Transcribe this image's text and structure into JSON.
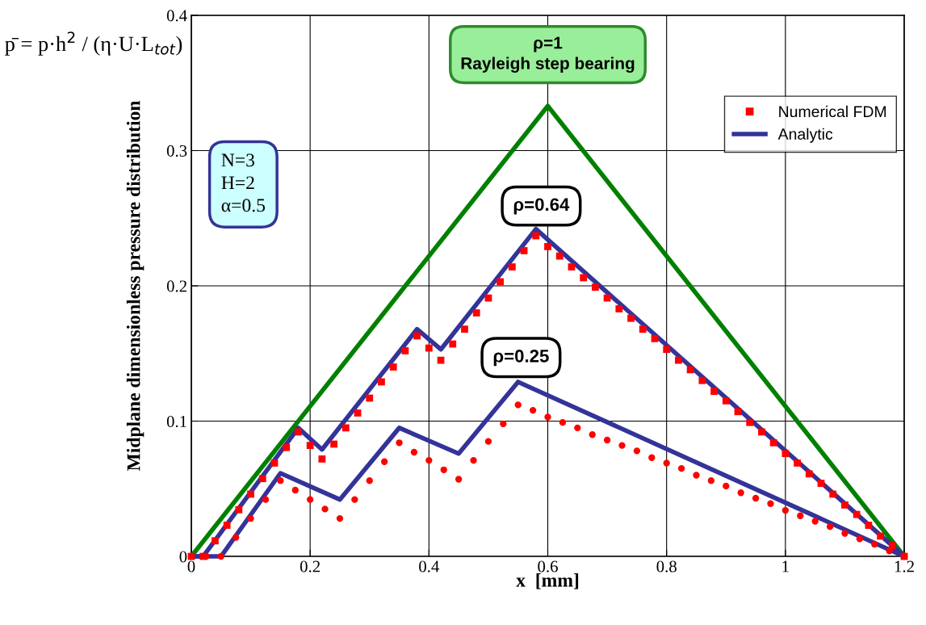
{
  "chart_data": {
    "type": "line",
    "xlabel": "x  [mm]",
    "ylabel": "Midplane dimensionless pressure distribution",
    "xlim": [
      0,
      1.2
    ],
    "xticks": [
      0,
      0.2,
      0.4,
      0.6,
      0.8,
      1,
      1.2
    ],
    "ylim": [
      0,
      0.4
    ],
    "yticks": [
      0,
      0.1,
      0.2,
      0.3,
      0.4
    ],
    "grid": true,
    "legend": "top right",
    "series": [
      {
        "color": "#008000",
        "x": [
          0,
          0.6,
          1.2
        ],
        "values": [
          0,
          0.333,
          0
        ]
      },
      {
        "type": "scatter",
        "name": "Numerical FDM",
        "color": "#ff0000",
        "marker": "square",
        "x": [
          0,
          0.02,
          0.04,
          0.06,
          0.08,
          0.1,
          0.12,
          0.14,
          0.16,
          0.18,
          0.2,
          0.22,
          0.24,
          0.26,
          0.28,
          0.3,
          0.32,
          0.34,
          0.36,
          0.38,
          0.4,
          0.42,
          0.44,
          0.46,
          0.48,
          0.5,
          0.52,
          0.54,
          0.56,
          0.58,
          0.6,
          0.62,
          0.64,
          0.66,
          0.68,
          0.7,
          0.72,
          0.74,
          0.76,
          0.78,
          0.8,
          0.82,
          0.84,
          0.86,
          0.88,
          0.9,
          0.92,
          0.94,
          0.96,
          0.98,
          1.0,
          1.02,
          1.04,
          1.06,
          1.08,
          1.1,
          1.12,
          1.14,
          1.16,
          1.18,
          1.2
        ],
        "values": [
          0,
          0,
          0.0115,
          0.023,
          0.0345,
          0.046,
          0.0575,
          0.069,
          0.0805,
          0.092,
          0.082,
          0.072,
          0.083,
          0.095,
          0.106,
          0.117,
          0.129,
          0.14,
          0.152,
          0.163,
          0.154,
          0.145,
          0.157,
          0.168,
          0.18,
          0.191,
          0.203,
          0.214,
          0.226,
          0.237,
          0.229,
          0.222,
          0.214,
          0.206,
          0.199,
          0.191,
          0.183,
          0.176,
          0.168,
          0.161,
          0.153,
          0.145,
          0.138,
          0.13,
          0.122,
          0.115,
          0.107,
          0.099,
          0.092,
          0.084,
          0.076,
          0.069,
          0.061,
          0.054,
          0.046,
          0.038,
          0.031,
          0.023,
          0.015,
          0.008,
          0
        ]
      },
      {
        "name": "Analytic",
        "color": "#333399",
        "x": [
          0,
          0.02,
          0.18,
          0.22,
          0.38,
          0.42,
          0.58,
          1.2
        ],
        "values": [
          0,
          0,
          0.095,
          0.079,
          0.168,
          0.153,
          0.242,
          0
        ]
      },
      {
        "color": "#333399",
        "x": [
          0,
          0.05,
          0.15,
          0.25,
          0.35,
          0.45,
          0.55,
          1.2
        ],
        "values": [
          0,
          0,
          0.0615,
          0.042,
          0.095,
          0.076,
          0.129,
          0
        ]
      },
      {
        "type": "scatter",
        "color": "#ff0000",
        "marker": "circle",
        "x": [
          0,
          0.025,
          0.05,
          0.075,
          0.1,
          0.125,
          0.15,
          0.175,
          0.2,
          0.225,
          0.25,
          0.275,
          0.3,
          0.325,
          0.35,
          0.375,
          0.4,
          0.425,
          0.45,
          0.475,
          0.5,
          0.525,
          0.55,
          0.575,
          0.6,
          0.625,
          0.65,
          0.675,
          0.7,
          0.725,
          0.75,
          0.775,
          0.8,
          0.825,
          0.85,
          0.875,
          0.9,
          0.925,
          0.95,
          0.975,
          1.0,
          1.025,
          1.05,
          1.075,
          1.1,
          1.125,
          1.15,
          1.175,
          1.2
        ],
        "values": [
          0,
          0,
          0,
          0.014,
          0.028,
          0.042,
          0.056,
          0.049,
          0.042,
          0.035,
          0.028,
          0.042,
          0.056,
          0.07,
          0.084,
          0.077,
          0.071,
          0.064,
          0.057,
          0.071,
          0.085,
          0.098,
          0.112,
          0.108,
          0.103,
          0.099,
          0.095,
          0.09,
          0.086,
          0.082,
          0.078,
          0.073,
          0.069,
          0.065,
          0.06,
          0.056,
          0.052,
          0.047,
          0.043,
          0.039,
          0.034,
          0.03,
          0.026,
          0.022,
          0.017,
          0.013,
          0.009,
          0.004,
          0
        ]
      }
    ],
    "annotations": [
      "ρ=1\nRayleigh step bearing",
      "ρ=0.64",
      "ρ=0.25",
      "N=3\nH=2\nα=0.5",
      "p̄ = p·h$^{2}$ / (η·U·L$_{tot}$)"
    ]
  }
}
